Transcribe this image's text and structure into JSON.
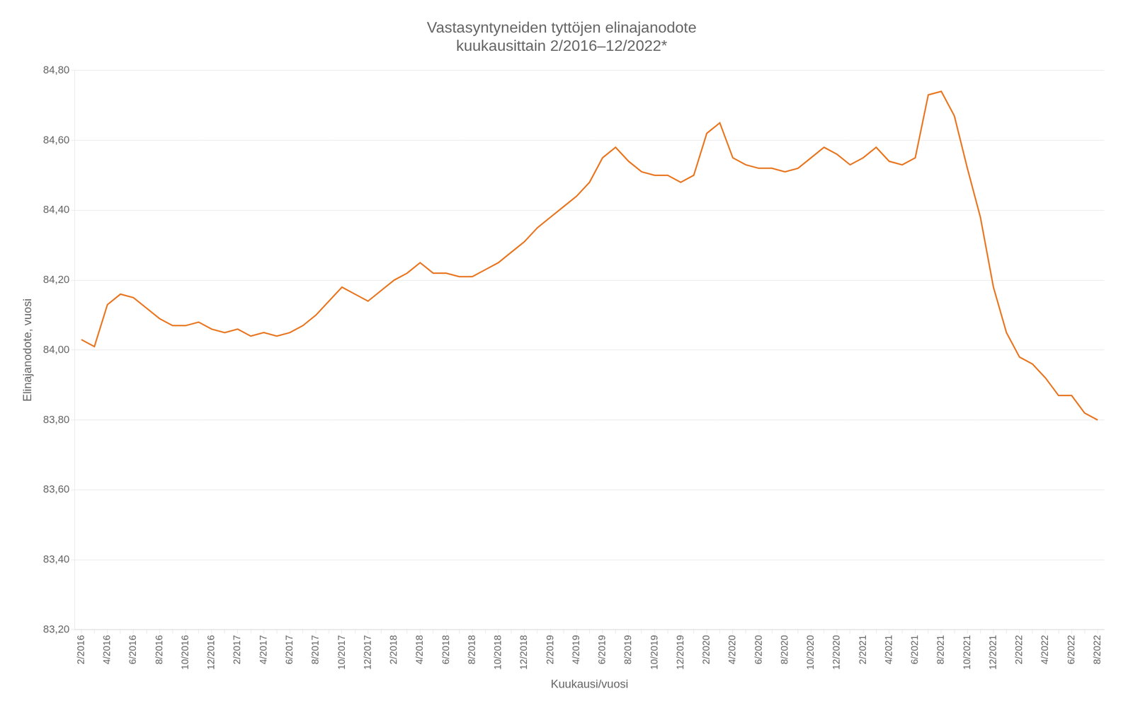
{
  "chart_data": {
    "type": "line",
    "title": "Vastasyntyneiden tyttöjen elinajanodote\nkuukausittain 2/2016–12/2022*",
    "x_label": "Kuukausi/vuosi",
    "y_label": "Elinajanodote, vuosi",
    "color": "#E87722",
    "grid": true,
    "categories": [
      "2/2016",
      null,
      "4/2016",
      null,
      "6/2016",
      null,
      "8/2016",
      null,
      "10/2016",
      null,
      "12/2016",
      null,
      "2/2017",
      null,
      "4/2017",
      null,
      "6/2017",
      null,
      "8/2017",
      null,
      "10/2017",
      null,
      "12/2017",
      null,
      "2/2018",
      null,
      "4/2018",
      null,
      "6/2018",
      null,
      "8/2018",
      null,
      "10/2018",
      null,
      "12/2018",
      null,
      "2/2019",
      null,
      "4/2019",
      null,
      "6/2019",
      null,
      "8/2019",
      null,
      "10/2019",
      null,
      "12/2019",
      null,
      "2/2020",
      null,
      "4/2020",
      null,
      "6/2020",
      null,
      "8/2020",
      null,
      "10/2020",
      null,
      "12/2020",
      null,
      "2/2021",
      null,
      "4/2021",
      null,
      "6/2021",
      null,
      "8/2021",
      null,
      "10/2021",
      null,
      "12/2021",
      null,
      "2/2022",
      null,
      "4/2022",
      null,
      "6/2022",
      null,
      "8/2022"
    ],
    "values": [
      84.03,
      84.01,
      84.13,
      84.16,
      84.15,
      84.12,
      84.09,
      84.07,
      84.07,
      84.08,
      84.06,
      84.05,
      84.06,
      84.04,
      84.05,
      84.04,
      84.05,
      84.07,
      84.1,
      84.14,
      84.18,
      84.16,
      84.14,
      84.17,
      84.2,
      84.22,
      84.25,
      84.22,
      84.22,
      84.21,
      84.21,
      84.23,
      84.25,
      84.28,
      84.31,
      84.35,
      84.38,
      84.41,
      84.44,
      84.48,
      84.55,
      84.58,
      84.54,
      84.51,
      84.5,
      84.5,
      84.48,
      84.5,
      84.62,
      84.65,
      84.55,
      84.53,
      84.52,
      84.52,
      84.51,
      84.52,
      84.55,
      84.58,
      84.56,
      84.53,
      84.55,
      84.58,
      84.54,
      84.53,
      84.55,
      84.73,
      84.74,
      84.67,
      84.52,
      84.38,
      84.18,
      84.05,
      83.98,
      83.96,
      83.92,
      83.87,
      83.87,
      83.82,
      83.8
    ],
    "ylim": [
      83.2,
      84.8
    ],
    "yticks": [
      {
        "value": 83.2,
        "label": "83,20"
      },
      {
        "value": 83.4,
        "label": "83,40"
      },
      {
        "value": 83.6,
        "label": "83,60"
      },
      {
        "value": 83.8,
        "label": "83,80"
      },
      {
        "value": 84.0,
        "label": "84,00"
      },
      {
        "value": 84.2,
        "label": "84,20"
      },
      {
        "value": 84.4,
        "label": "84,40"
      },
      {
        "value": 84.6,
        "label": "84,60"
      },
      {
        "value": 84.8,
        "label": "84,80"
      }
    ]
  }
}
